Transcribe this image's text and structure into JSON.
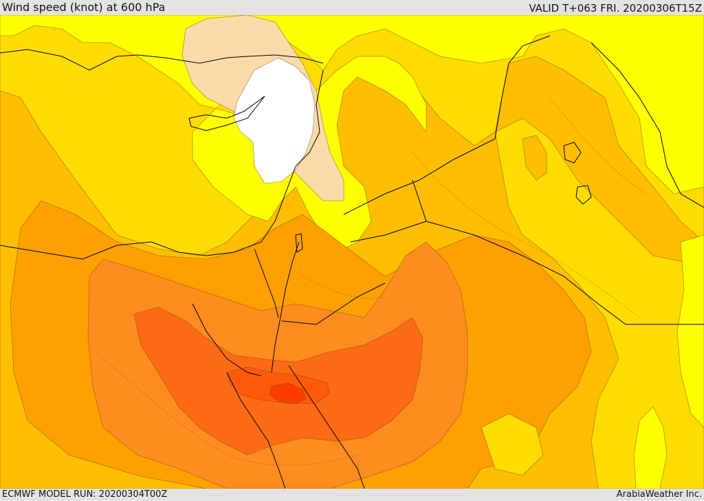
{
  "header": {
    "title": "Wind speed (knot) at 600 hPa",
    "valid": "VALID T+063 FRI. 20200306T15Z"
  },
  "footer": {
    "model_run": "ECMWF MODEL RUN: 20200304T00Z",
    "credit": "ArabiaWeather Inc."
  },
  "map": {
    "levels": [
      {
        "name": "white",
        "color": "#ffffff"
      },
      {
        "name": "peach",
        "color": "#fcdba8"
      },
      {
        "name": "yellow",
        "color": "#ffff00"
      },
      {
        "name": "gold",
        "color": "#ffdc00"
      },
      {
        "name": "amber",
        "color": "#ffbf00"
      },
      {
        "name": "light-orange",
        "color": "#ffa000"
      },
      {
        "name": "orange",
        "color": "#ff8c1e"
      },
      {
        "name": "dark-orange",
        "color": "#ff6a14"
      },
      {
        "name": "red-orange",
        "color": "#ff5a0a"
      },
      {
        "name": "red",
        "color": "#ff3c00"
      }
    ]
  }
}
